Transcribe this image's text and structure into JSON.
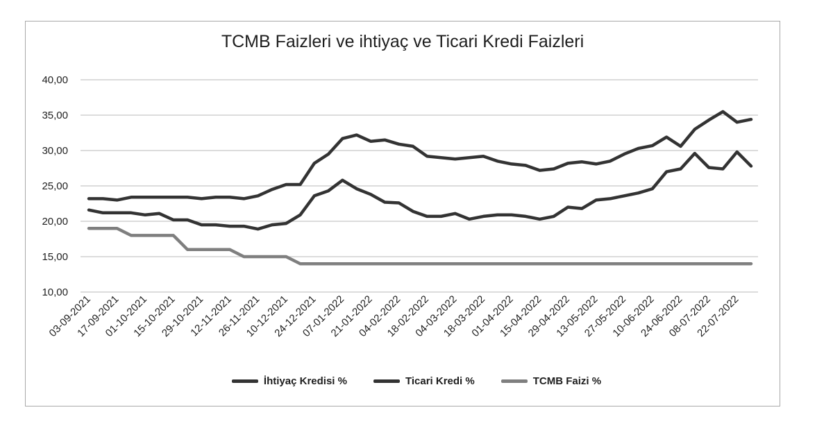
{
  "chart_data": {
    "type": "line",
    "title": "TCMB Faizleri ve ihtiyaç ve Ticari Kredi Faizleri",
    "xlabel": "",
    "ylabel": "",
    "ylim": [
      10,
      40
    ],
    "yticks": [
      "10,00",
      "15,00",
      "20,00",
      "25,00",
      "30,00",
      "35,00",
      "40,00"
    ],
    "grid": true,
    "legend_position": "bottom",
    "x_tick_labels": [
      "03-09-2021",
      "17-09-2021",
      "01-10-2021",
      "15-10-2021",
      "29-10-2021",
      "12-11-2021",
      "26-11-2021",
      "10-12-2021",
      "24-12-2021",
      "07-01-2022",
      "21-01-2022",
      "04-02-2022",
      "18-02-2022",
      "04-03-2022",
      "18-03-2022",
      "01-04-2022",
      "15-04-2022",
      "29-04-2022",
      "13-05-2022",
      "27-05-2022",
      "10-06-2022",
      "24-06-2022",
      "08-07-2022",
      "22-07-2022"
    ],
    "x": [
      "03-09-2021",
      "10-09-2021",
      "17-09-2021",
      "24-09-2021",
      "01-10-2021",
      "08-10-2021",
      "15-10-2021",
      "22-10-2021",
      "29-10-2021",
      "05-11-2021",
      "12-11-2021",
      "19-11-2021",
      "26-11-2021",
      "03-12-2021",
      "10-12-2021",
      "17-12-2021",
      "24-12-2021",
      "31-12-2021",
      "07-01-2022",
      "14-01-2022",
      "21-01-2022",
      "28-01-2022",
      "04-02-2022",
      "11-02-2022",
      "18-02-2022",
      "25-02-2022",
      "04-03-2022",
      "11-03-2022",
      "18-03-2022",
      "25-03-2022",
      "01-04-2022",
      "08-04-2022",
      "15-04-2022",
      "22-04-2022",
      "29-04-2022",
      "06-05-2022",
      "13-05-2022",
      "20-05-2022",
      "27-05-2022",
      "03-06-2022",
      "10-06-2022",
      "17-06-2022",
      "24-06-2022",
      "01-07-2022",
      "08-07-2022",
      "15-07-2022",
      "22-07-2022",
      "29-07-2022"
    ],
    "series": [
      {
        "name": "İhtiyaç Kredisi %",
        "color": "#333333",
        "values": [
          23.2,
          23.2,
          23.0,
          23.4,
          23.4,
          23.4,
          23.4,
          23.4,
          23.2,
          23.4,
          23.4,
          23.2,
          23.6,
          24.5,
          25.2,
          25.2,
          28.2,
          29.5,
          31.7,
          32.2,
          31.3,
          31.5,
          30.9,
          30.6,
          29.2,
          29.0,
          28.8,
          29.0,
          29.2,
          28.5,
          28.1,
          27.9,
          27.2,
          27.4,
          28.2,
          28.4,
          28.1,
          28.5,
          29.5,
          30.3,
          30.7,
          31.9,
          30.6,
          33.0,
          34.3,
          35.5,
          34.0,
          34.4
        ]
      },
      {
        "name": "Ticari Kredi %",
        "color": "#333333",
        "values": [
          21.6,
          21.2,
          21.2,
          21.2,
          20.9,
          21.1,
          20.2,
          20.2,
          19.5,
          19.5,
          19.3,
          19.3,
          18.9,
          19.5,
          19.7,
          20.9,
          23.6,
          24.3,
          25.8,
          24.6,
          23.8,
          22.7,
          22.6,
          21.4,
          20.7,
          20.7,
          21.1,
          20.3,
          20.7,
          20.9,
          20.9,
          20.7,
          20.3,
          20.7,
          22.0,
          21.8,
          23.0,
          23.2,
          23.6,
          24.0,
          24.6,
          27.0,
          27.4,
          29.6,
          27.6,
          27.4,
          29.8,
          27.8
        ]
      },
      {
        "name": "TCMB Faizi %",
        "color": "#7f7f7f",
        "values": [
          19.0,
          19.0,
          19.0,
          18.0,
          18.0,
          18.0,
          18.0,
          16.0,
          16.0,
          16.0,
          16.0,
          15.0,
          15.0,
          15.0,
          15.0,
          14.0,
          14.0,
          14.0,
          14.0,
          14.0,
          14.0,
          14.0,
          14.0,
          14.0,
          14.0,
          14.0,
          14.0,
          14.0,
          14.0,
          14.0,
          14.0,
          14.0,
          14.0,
          14.0,
          14.0,
          14.0,
          14.0,
          14.0,
          14.0,
          14.0,
          14.0,
          14.0,
          14.0,
          14.0,
          14.0,
          14.0,
          14.0,
          14.0
        ]
      }
    ]
  }
}
